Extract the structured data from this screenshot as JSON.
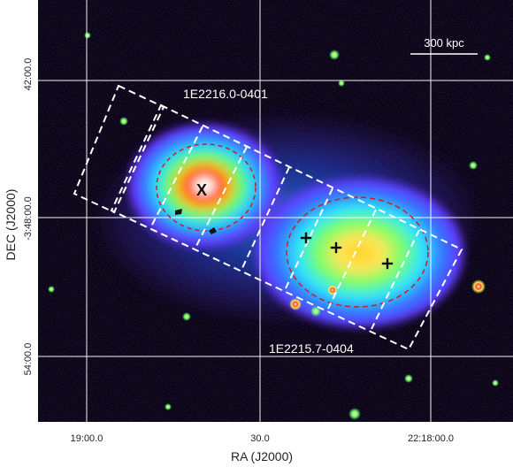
{
  "figure": {
    "y_axis_title": "DEC (J2000)",
    "x_axis_title": "RA (J2000)",
    "y_ticks": [
      "42:00.0",
      "-3:48:00.0",
      "54:00.0"
    ],
    "x_ticks": [
      "19:00.0",
      "30.0",
      "22:18:00.0"
    ],
    "scale_bar_label": "300 kpc",
    "labels": {
      "north_cluster": "1E2216.0-0401",
      "south_cluster": "1E2215.7-0404"
    },
    "markers": {
      "x_marker": "X"
    },
    "colors": {
      "background": "#02000a",
      "grid": "#ffffff",
      "dashed_regions": "#ffffff",
      "ellipse": "#cc1f1f",
      "cluster_core": "#fffdf7",
      "cluster_hot": "#ff3a1c",
      "cluster_warm": "#ffb31b",
      "cluster_mid": "#69ff61",
      "cluster_cool": "#3576ff",
      "cluster_outer": "#6b2cff"
    }
  }
}
